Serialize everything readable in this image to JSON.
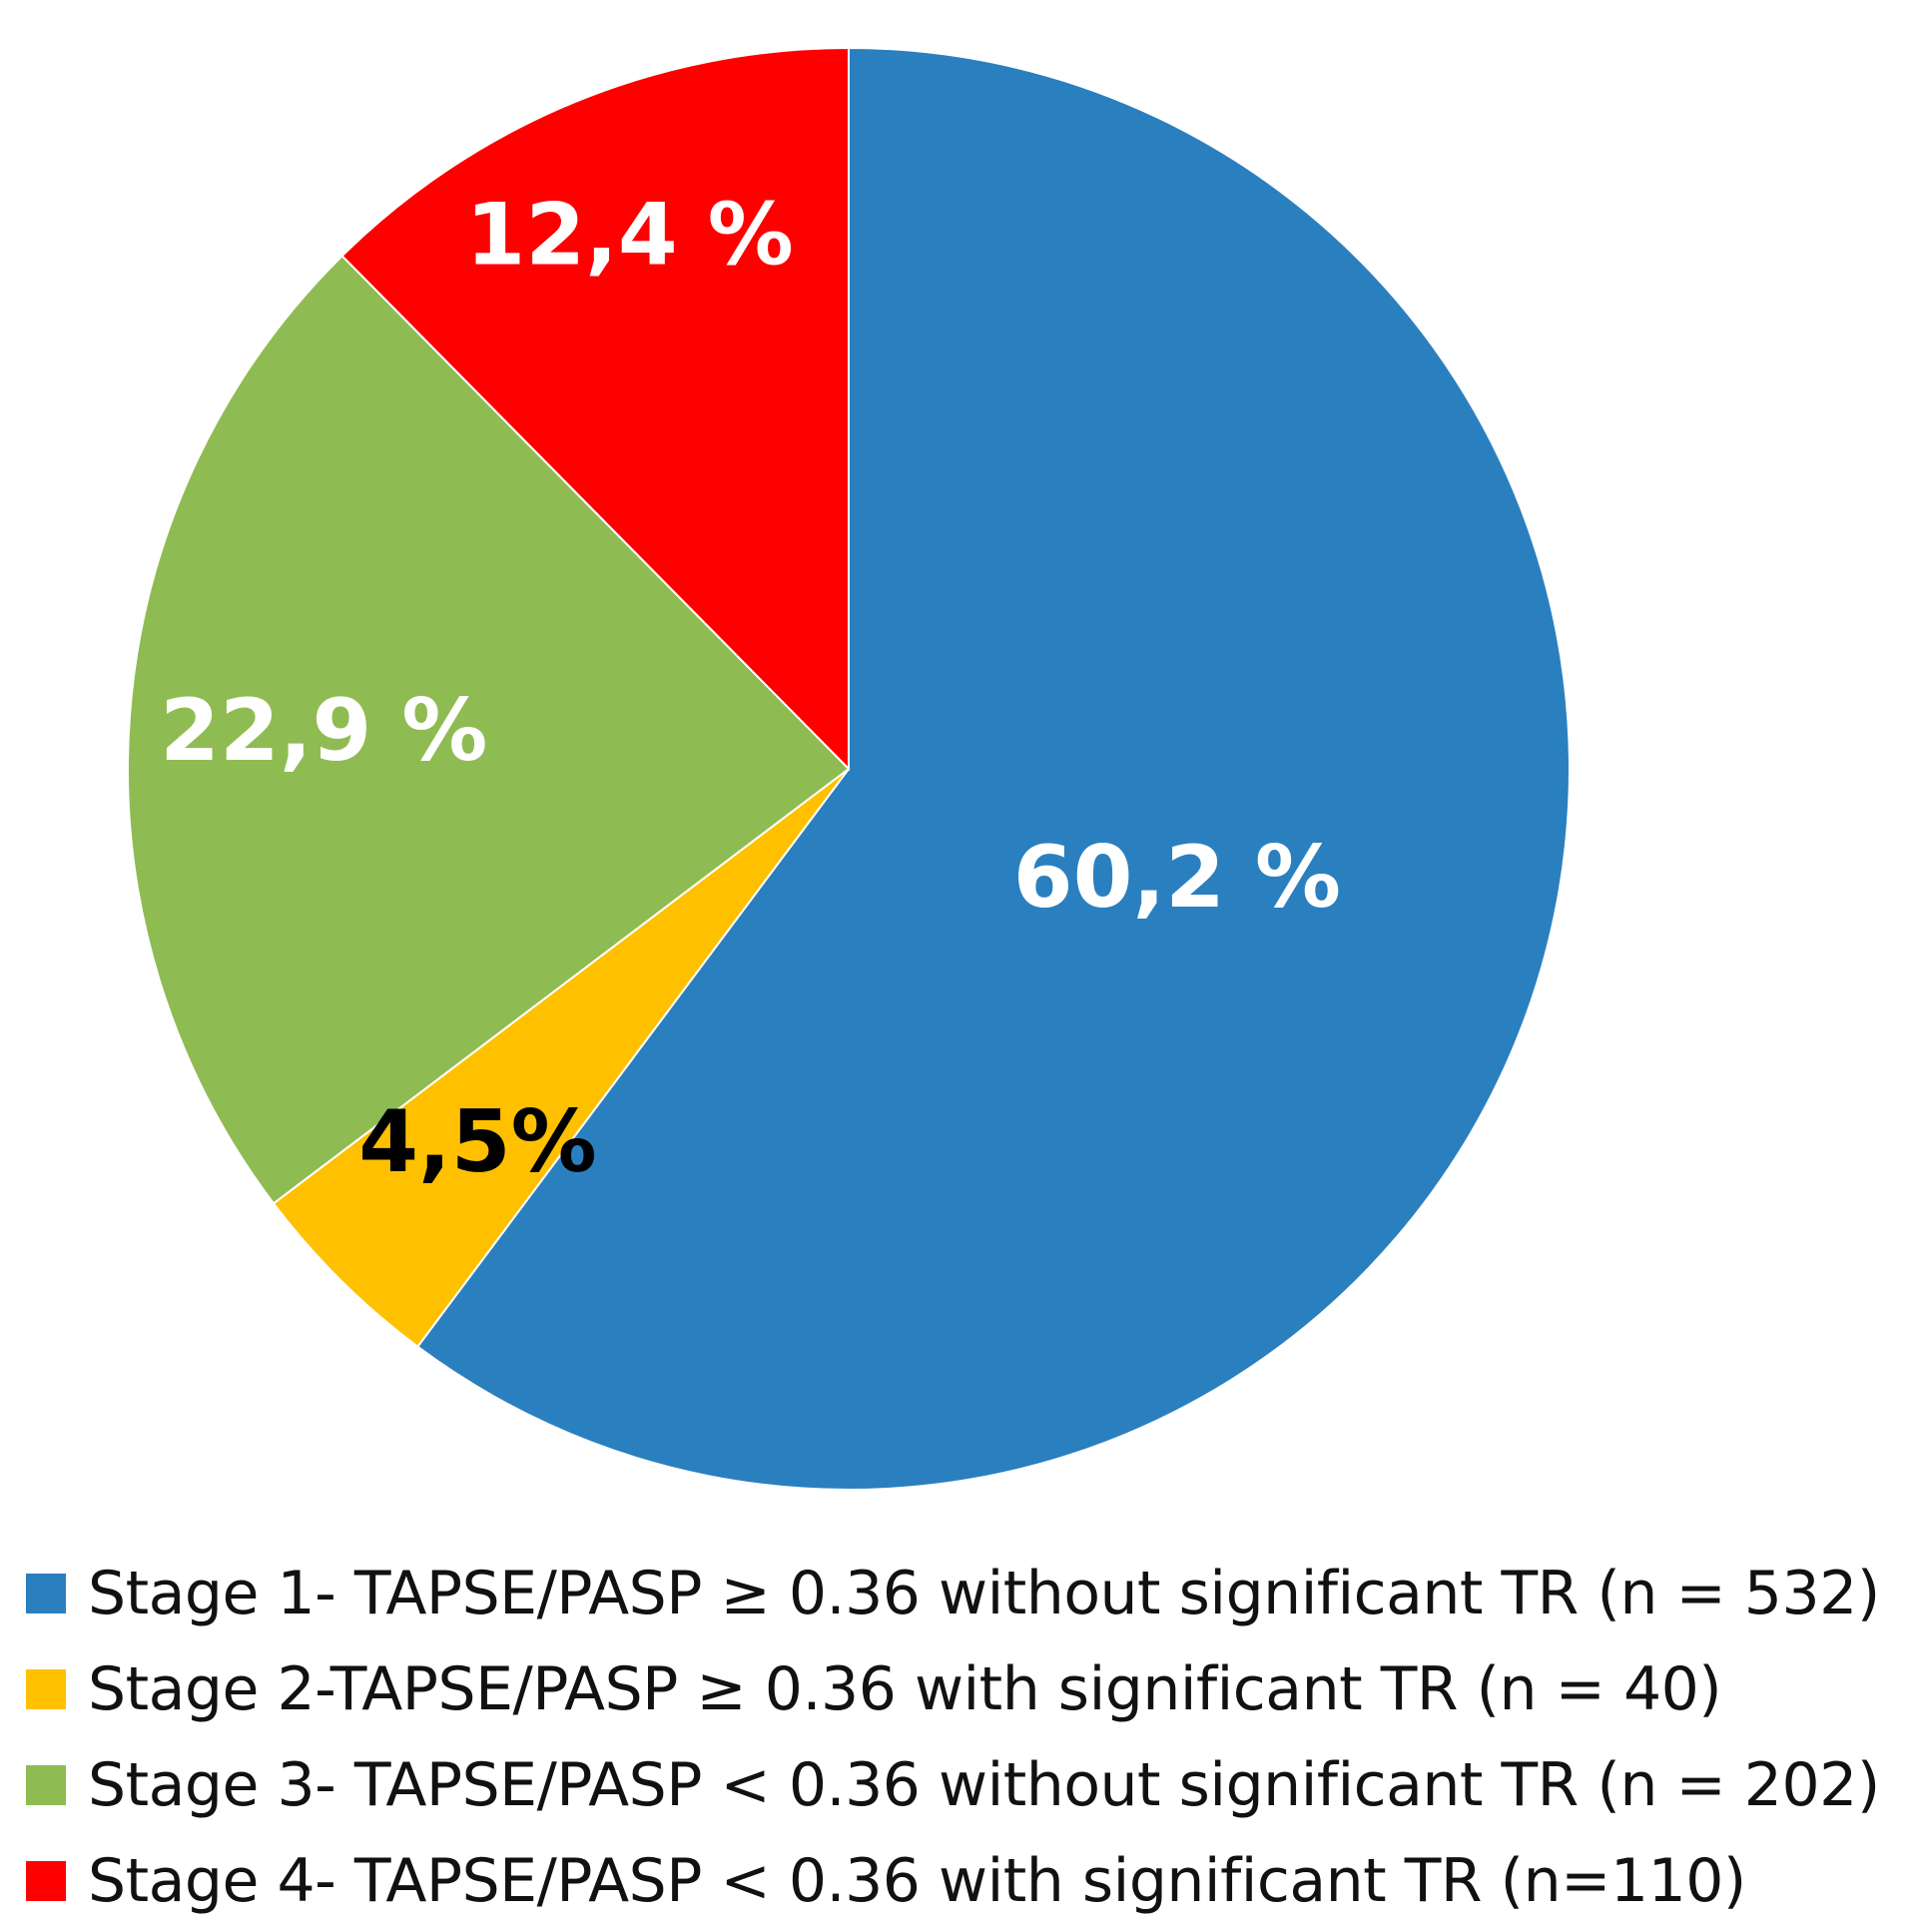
{
  "chart_data": {
    "type": "pie",
    "title": "",
    "start": "top-clockwise",
    "slices": [
      {
        "label": "60,2 %",
        "value": 60.2,
        "color": "#2A7FBF",
        "label_color": "#FFFFFF",
        "legend": "Stage 1- TAPSE/PASP ≥ 0.36 without significant TR (n = 532)"
      },
      {
        "label": "4,5%",
        "value": 4.5,
        "color": "#FFC000",
        "label_color": "#000000",
        "legend": "Stage 2-TAPSE/PASP ≥ 0.36 with significant TR (n = 40)"
      },
      {
        "label": "22,9 %",
        "value": 22.9,
        "color": "#8FBC52",
        "label_color": "#FFFFFF",
        "legend": "Stage 3- TAPSE/PASP < 0.36 without significant TR (n = 202)"
      },
      {
        "label": "12,4 %",
        "value": 12.4,
        "color": "#FF0000",
        "label_color": "#FFFFFF",
        "legend": "Stage 4- TAPSE/PASP < 0.36 with significant TR (n=110)"
      }
    ],
    "legend_position": "bottom"
  }
}
